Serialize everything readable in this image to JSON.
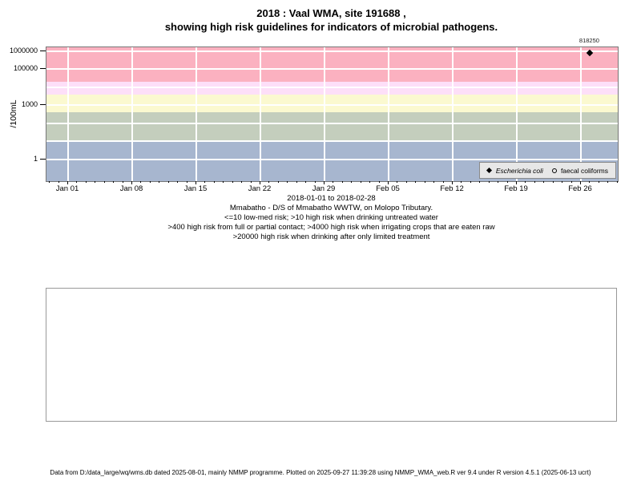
{
  "title": {
    "line1": "2018 : Vaal WMA, site 191688 ,",
    "line2": "showing high risk guidelines for indicators of microbial pathogens."
  },
  "chart_data": {
    "type": "scatter",
    "title": "2018 : Vaal WMA, site 191688 , showing high risk guidelines for indicators of microbial pathogens.",
    "ylabel": "/100mL",
    "y_scale": "log10",
    "grid": true,
    "x_range_label": "2018-01-01 to 2018-02-28",
    "x_ticks": [
      "Jan 01",
      "Jan 08",
      "Jan 15",
      "Jan 22",
      "Jan 29",
      "Feb 05",
      "Feb 12",
      "Feb 19",
      "Feb 26"
    ],
    "y_ticks": [
      {
        "label": "1000000",
        "value": 1000000
      },
      {
        "label": "100000",
        "value": 100000
      },
      {
        "label": "1000",
        "value": 1000
      },
      {
        "label": "1",
        "value": 1
      }
    ],
    "ylim_approx": [
      0.06,
      1670000
    ],
    "bands": [
      {
        "range": ">20000",
        "min": 20000,
        "max": null,
        "color": "#FBB1C0",
        "risk": "high risk when drinking after only limited treatment"
      },
      {
        "range": "4000-20000",
        "min": 4000,
        "max": 20000,
        "color": "#FDDFF8",
        "risk": "high risk when irrigating crops that are eaten raw"
      },
      {
        "range": "400-4000",
        "min": 400,
        "max": 4000,
        "color": "#FBF9D0",
        "risk": "high risk from full or partial contact"
      },
      {
        "range": "10-400",
        "min": 10,
        "max": 400,
        "color": "#C4CEBD",
        "risk": "high risk when drinking untreated water"
      },
      {
        "range": "<=10",
        "min": null,
        "max": 10,
        "color": "#A7B6CF",
        "risk": "low-med risk"
      }
    ],
    "series": [
      {
        "name": "Escherichia coli",
        "symbol": "filled-diamond",
        "italic": true,
        "points": [
          {
            "date": "Feb 27",
            "value": 818250,
            "label": "818250"
          }
        ]
      },
      {
        "name": "faecal coliforms",
        "symbol": "open-circle",
        "italic": false,
        "points": []
      }
    ],
    "legend_position": "bottom-right"
  },
  "captions": [
    "2018-01-01 to 2018-02-28",
    "Mmabatho - D/S of Mmabatho WWTW, on Molopo Tributary.",
    "<=10 low-med risk; >10 high risk when drinking untreated water",
    ">400 high risk from full or partial contact; >4000 high risk when irrigating crops that are eaten raw",
    ">20000 high risk when drinking after only limited treatment"
  ],
  "footer": "Data from D:/data_large/wq/wms.db dated 2025-08-01, mainly NMMP programme. Plotted on 2025-09-27 11:39:28 using NMMP_WMA_web.R ver 9.4 under R version 4.5.1 (2025-06-13 ucrt)"
}
